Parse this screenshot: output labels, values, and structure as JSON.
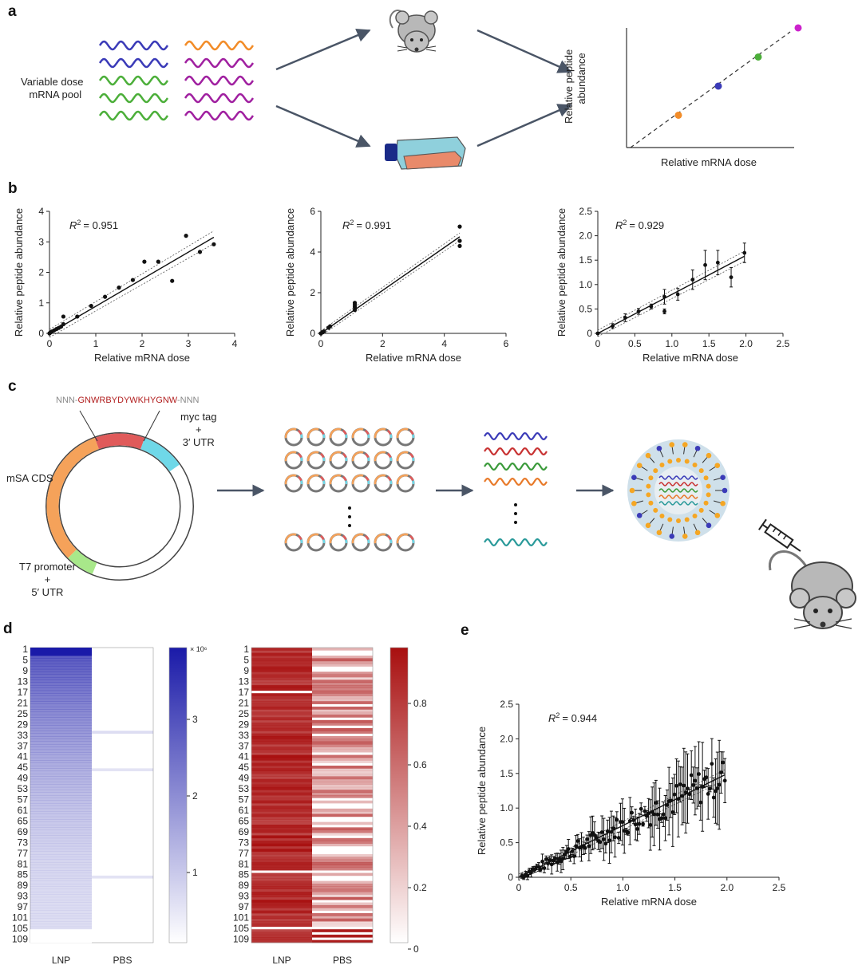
{
  "panels": {
    "a": {
      "letter": "a",
      "pool_label_line1": "Variable dose",
      "pool_label_line2": "mRNA pool",
      "ylabel_line1": "Relative peptide",
      "ylabel_line2": "abundance",
      "xlabel": "Relative mRNA dose",
      "wave_colors": [
        "#3b3bb8",
        "#3b3bb8",
        "#4caf3a",
        "#4caf3a",
        "#4caf3a",
        "#f28c28",
        "#a020a0",
        "#a020a0",
        "#a020a0",
        "#a020a0"
      ],
      "dot_colors": [
        "#f28c28",
        "#3b3bb8",
        "#4caf3a",
        "#cc22cc"
      ]
    },
    "b": {
      "letter": "b",
      "icons": [
        "mouse-icon",
        "flask-icon"
      ]
    },
    "c": {
      "letter": "c",
      "insert_prefix": "NNN-",
      "insert_seq": "GNWRBYDYWKHYGNW",
      "insert_suffix": "-NNN",
      "myc_line1": "myc tag",
      "myc_line2": "+",
      "myc_line3": "3′ UTR",
      "cds_label": "mSA CDS",
      "t7_line1": "T7 promoter",
      "t7_line2": "+",
      "t7_line3": "5′ UTR",
      "colors": {
        "insert": "#e05a5a",
        "myc": "#6fd8e8",
        "cds": "#f5a25a",
        "t7": "#a8e88a",
        "seq_text": "#b22020"
      },
      "strand_colors": [
        "#3b3bb8",
        "#c83232",
        "#3a9a3a",
        "#e87a2a",
        "#2a9a9a"
      ],
      "icons": [
        "plasmid-icon",
        "lnp-icon",
        "syringe-icon",
        "mouse-icon"
      ]
    },
    "d": {
      "letter": "d",
      "row_labels": [
        "1",
        "5",
        "9",
        "13",
        "17",
        "21",
        "25",
        "29",
        "33",
        "37",
        "41",
        "45",
        "49",
        "53",
        "57",
        "61",
        "65",
        "69",
        "73",
        "77",
        "81",
        "85",
        "89",
        "93",
        "97",
        "101",
        "105",
        "109"
      ],
      "columns": [
        "LNP",
        "PBS"
      ],
      "left_scale_label": "× 10⁶",
      "left_scale_ticks": [
        "3",
        "2",
        "1"
      ],
      "right_scale_ticks": [
        "0.8",
        "0.6",
        "0.4",
        "0.2",
        "0"
      ],
      "colors": {
        "blue": "#1a1aa8",
        "red": "#a80f0f"
      }
    },
    "e": {
      "letter": "e",
      "r2_text": "= 0.944"
    }
  },
  "chart_data": [
    {
      "id": "a-schematic",
      "type": "scatter",
      "xlabel": "Relative mRNA dose",
      "ylabel": "Relative peptide abundance",
      "x": [
        1,
        2,
        3,
        4
      ],
      "y": [
        1,
        2,
        3,
        4
      ],
      "colors": [
        "#f28c28",
        "#3b3bb8",
        "#4caf3a",
        "#cc22cc"
      ]
    },
    {
      "id": "b1",
      "type": "scatter",
      "r2_text": "= 0.951",
      "xlabel": "Relative mRNA dose",
      "ylabel": "Relative peptide abundance",
      "xlim": [
        0,
        4
      ],
      "ylim": [
        0,
        4
      ],
      "xticks": [
        "0",
        "1",
        "2",
        "3",
        "4"
      ],
      "yticks": [
        "0",
        "1",
        "2",
        "3",
        "4"
      ],
      "x": [
        0,
        0.02,
        0.05,
        0.1,
        0.15,
        0.2,
        0.25,
        0.3,
        0.3,
        0.6,
        0.9,
        1.2,
        1.5,
        1.8,
        2.05,
        2.35,
        2.65,
        2.95,
        3.25,
        3.55
      ],
      "y": [
        0,
        0.03,
        0.06,
        0.1,
        0.14,
        0.18,
        0.22,
        0.3,
        0.55,
        0.55,
        0.9,
        1.2,
        1.5,
        1.75,
        2.35,
        2.35,
        1.72,
        3.2,
        2.67,
        2.92
      ],
      "fit": [
        [
          0,
          0
        ],
        [
          3.55,
          3.15
        ]
      ]
    },
    {
      "id": "b2",
      "type": "scatter",
      "r2_text": "= 0.991",
      "xlabel": "Relative mRNA dose",
      "ylabel": "Relative peptide abundance",
      "xlim": [
        0,
        6
      ],
      "ylim": [
        0,
        6
      ],
      "xticks": [
        "0",
        "2",
        "4",
        "6"
      ],
      "yticks": [
        "0",
        "2",
        "4",
        "6"
      ],
      "x": [
        0,
        0.05,
        0.1,
        0.25,
        0.3,
        1.1,
        1.1,
        1.1,
        1.1,
        4.5,
        4.5,
        4.5
      ],
      "y": [
        0,
        0.05,
        0.1,
        0.28,
        0.35,
        1.15,
        1.3,
        1.4,
        1.5,
        4.3,
        4.55,
        5.25
      ],
      "fit": [
        [
          0,
          0
        ],
        [
          4.5,
          4.75
        ]
      ]
    },
    {
      "id": "b3",
      "type": "scatter",
      "r2_text": "= 0.929",
      "xlabel": "Relative mRNA dose",
      "ylabel": "Relative peptide abundance",
      "xlim": [
        0,
        2.5
      ],
      "ylim": [
        0,
        2.5
      ],
      "xticks": [
        "0",
        "0.5",
        "1.0",
        "1.5",
        "2.0",
        "2.5"
      ],
      "yticks": [
        "0",
        "0.5",
        "1.0",
        "1.5",
        "2.0",
        "2.5"
      ],
      "x": [
        0,
        0.2,
        0.37,
        0.55,
        0.72,
        0.9,
        0.9,
        1.08,
        1.28,
        1.45,
        1.62,
        1.8,
        1.98
      ],
      "y": [
        0,
        0.15,
        0.32,
        0.45,
        0.55,
        0.75,
        0.45,
        0.8,
        1.1,
        1.4,
        1.45,
        1.15,
        1.65
      ],
      "err": [
        0.02,
        0.05,
        0.08,
        0.06,
        0.05,
        0.15,
        0.05,
        0.12,
        0.2,
        0.3,
        0.25,
        0.2,
        0.2
      ],
      "fit": [
        [
          0,
          0
        ],
        [
          1.98,
          1.58
        ]
      ]
    },
    {
      "id": "d-left",
      "type": "heatmap",
      "columns": [
        "LNP",
        "PBS"
      ],
      "rows": 110,
      "lnp_decay": [
        3.8,
        0.05
      ],
      "pbs": "near zero"
    },
    {
      "id": "d-right",
      "type": "heatmap",
      "columns": [
        "LNP",
        "PBS"
      ],
      "rows": 110,
      "range": [
        0,
        0.95
      ]
    },
    {
      "id": "e",
      "type": "scatter",
      "r2_text": "= 0.944",
      "xlabel": "Relative mRNA dose",
      "ylabel": "Relative peptide abundance",
      "xlim": [
        0,
        2.5
      ],
      "ylim": [
        0,
        2.5
      ],
      "xticks": [
        "0",
        "0.5",
        "1.0",
        "1.5",
        "2.0",
        "2.5"
      ],
      "yticks": [
        "0",
        "0.5",
        "1.0",
        "1.5",
        "2.0",
        "2.5"
      ],
      "n_points": 110,
      "slope": 0.75,
      "fit": [
        [
          0,
          0
        ],
        [
          1.98,
          1.48
        ]
      ]
    }
  ]
}
